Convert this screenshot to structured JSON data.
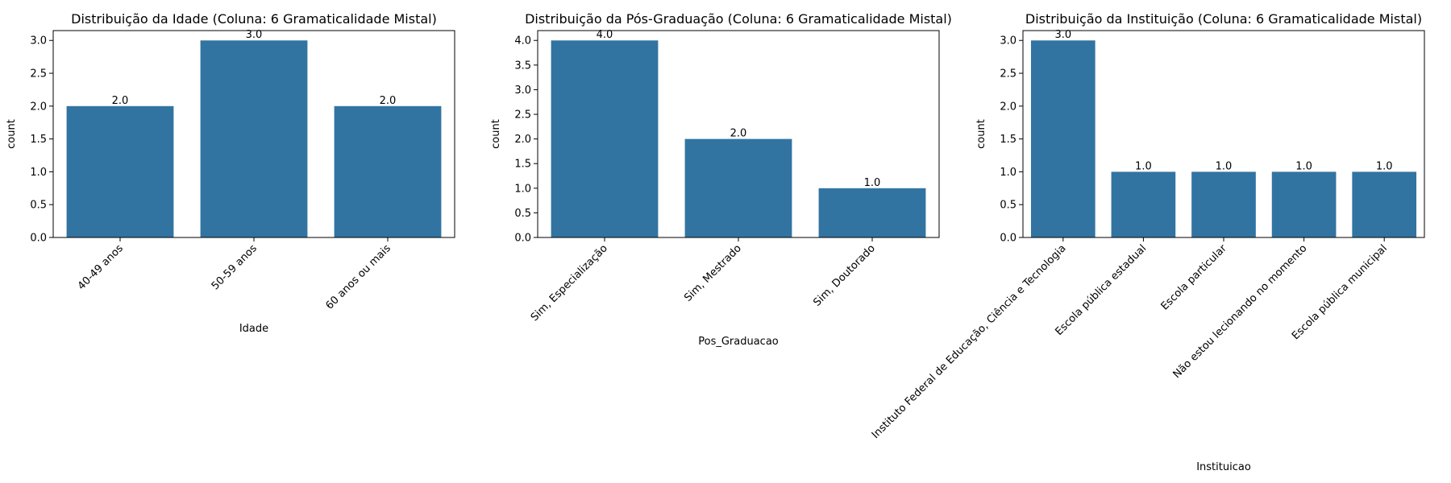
{
  "chart_data": [
    {
      "type": "bar",
      "title": "Distribuição da Idade (Coluna: 6 Gramaticalidade Mistal)",
      "xlabel": "Idade",
      "ylabel": "count",
      "categories": [
        "40-49 anos",
        "50-59 anos",
        "60 anos ou mais"
      ],
      "values": [
        2.0,
        3.0,
        2.0
      ],
      "data_labels": [
        "2.0",
        "3.0",
        "2.0"
      ],
      "ylim": [
        0,
        3.15
      ],
      "yticks": [
        "0.0",
        "0.5",
        "1.0",
        "1.5",
        "2.0",
        "2.5",
        "3.0"
      ],
      "ytick_values": [
        0,
        0.5,
        1,
        1.5,
        2,
        2.5,
        3
      ],
      "bar_color": "#3274a1",
      "grid": false
    },
    {
      "type": "bar",
      "title": "Distribuição da Pós-Graduação (Coluna: 6 Gramaticalidade Mistal)",
      "xlabel": "Pos_Graduacao",
      "ylabel": "count",
      "categories": [
        "Sim, Especialização",
        "Sim, Mestrado",
        "Sim, Doutorado"
      ],
      "values": [
        4.0,
        2.0,
        1.0
      ],
      "data_labels": [
        "4.0",
        "2.0",
        "1.0"
      ],
      "ylim": [
        0,
        4.2
      ],
      "yticks": [
        "0.0",
        "0.5",
        "1.0",
        "1.5",
        "2.0",
        "2.5",
        "3.0",
        "3.5",
        "4.0"
      ],
      "ytick_values": [
        0,
        0.5,
        1,
        1.5,
        2,
        2.5,
        3,
        3.5,
        4
      ],
      "bar_color": "#3274a1",
      "grid": false
    },
    {
      "type": "bar",
      "title": "Distribuição da Instituição (Coluna: 6 Gramaticalidade Mistal)",
      "xlabel": "Instituicao",
      "ylabel": "count",
      "categories": [
        "Instituto Federal de Educação, Ciência e Tecnologia",
        "Escola pública estadual",
        "Escola particular",
        "Não estou lecionando no momento",
        "Escola pública municipal"
      ],
      "values": [
        3.0,
        1.0,
        1.0,
        1.0,
        1.0
      ],
      "data_labels": [
        "3.0",
        "1.0",
        "1.0",
        "1.0",
        "1.0"
      ],
      "ylim": [
        0,
        3.15
      ],
      "yticks": [
        "0.0",
        "0.5",
        "1.0",
        "1.5",
        "2.0",
        "2.5",
        "3.0"
      ],
      "ytick_values": [
        0,
        0.5,
        1,
        1.5,
        2,
        2.5,
        3
      ],
      "bar_color": "#3274a1",
      "grid": false
    }
  ]
}
